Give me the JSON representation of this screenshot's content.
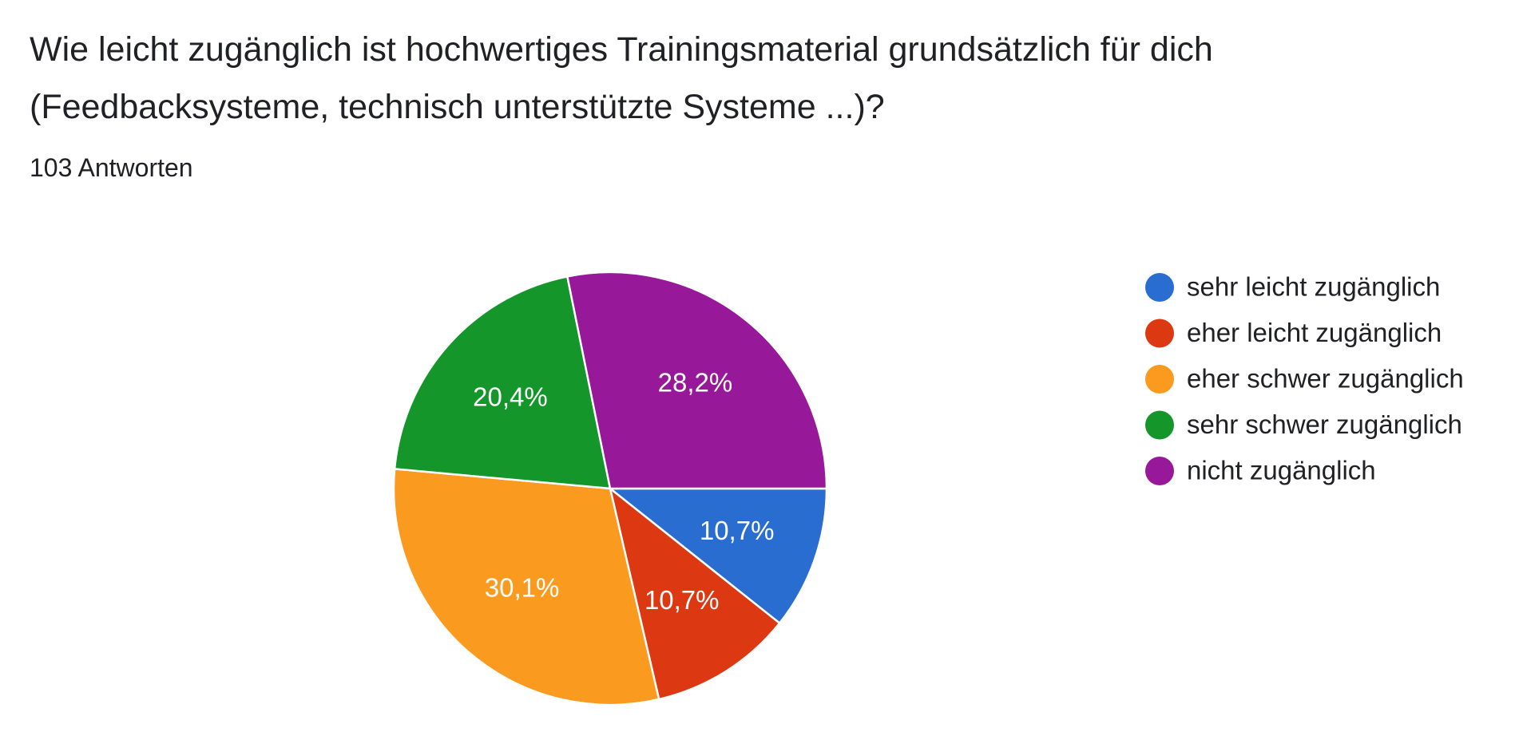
{
  "chart_data": {
    "type": "pie",
    "title": "Wie leicht zugänglich ist hochwertiges Trainingsmaterial grundsätzlich für dich (Feedbacksysteme, technisch unterstützte Systeme ...)?",
    "subtitle": "103 Antworten",
    "categories": [
      "sehr leicht zugänglich",
      "eher leicht zugänglich",
      "eher schwer zugänglich",
      "sehr schwer zugänglich",
      "nicht zugänglich"
    ],
    "values": [
      10.7,
      10.7,
      30.1,
      20.4,
      28.2
    ],
    "value_labels": [
      "10,7%",
      "10,7%",
      "30,1%",
      "20,4%",
      "28,2%"
    ],
    "colors": [
      "#2a6dd0",
      "#dc3912",
      "#fa9a1e",
      "#15962b",
      "#98189a"
    ],
    "legend": "right"
  }
}
